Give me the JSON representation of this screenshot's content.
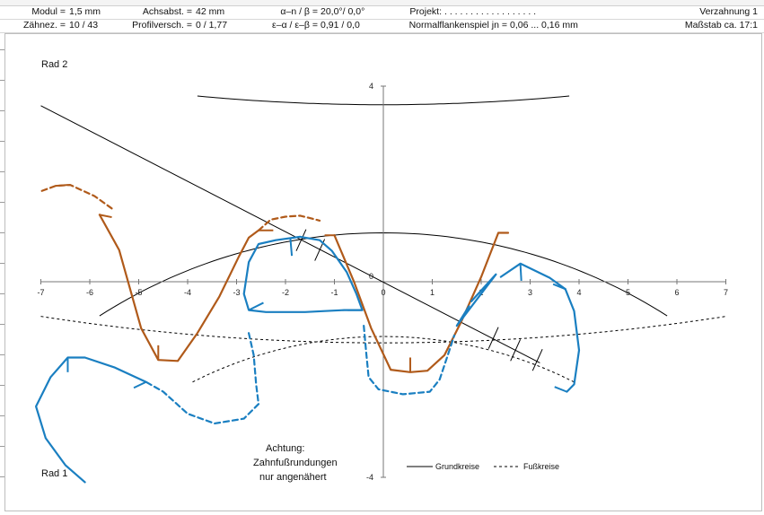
{
  "header": {
    "row1": {
      "modul_label": "Modul =",
      "modul_value": "1,5 mm",
      "achsabst_label": "Achsabst. =",
      "achsabst_value": "42 mm",
      "alpha_label": "α–n / β =",
      "alpha_value": "20,0°/ 0,0°",
      "projekt_label": "Projekt:",
      "projekt_value": ". . . . . . . . . . . . . . . . . .",
      "title": "Verzahnung 1"
    },
    "row2": {
      "zaehnez_label": "Zähnez. =",
      "zaehnez_value": "10 / 43",
      "profil_label": "Profilversch. =",
      "profil_value": "0 / 1,77",
      "eps_label": "ε–α / ε–β =",
      "eps_value": "0,91 / 0,0",
      "flank_label": "Normalflankenspiel jn =",
      "flank_value": "0,06 ... 0,16 mm",
      "scale": "Maßstab ca. 17:1"
    }
  },
  "chart_data": {
    "type": "line",
    "xlim": [
      -7,
      7
    ],
    "ylim": [
      -4,
      4
    ],
    "x_ticks": [
      "-7",
      "-6",
      "-5",
      "-4",
      "-3",
      "-2",
      "-1",
      "0",
      "1",
      "2",
      "3",
      "4",
      "5",
      "6",
      "7"
    ],
    "y_ticks": [
      "4",
      "0",
      "-4"
    ],
    "labels": {
      "rad2": "Rad 2",
      "rad1": "Rad 1"
    },
    "note": [
      "Achtung:",
      "Zahnfußrundungen",
      "nur angenähert"
    ],
    "legend": {
      "grundkreise": "Grundkreise",
      "fusskreise": "Fußkreise"
    },
    "colors": {
      "rad2": "#b05a1a",
      "rad1": "#1a7fc1",
      "circles": "#000000"
    },
    "circles": [
      {
        "name": "rad2-tip",
        "cx": 0,
        "cy": 44.25,
        "r": 40.63,
        "style": "solid",
        "x_from": -3.8,
        "x_to": 3.8
      },
      {
        "name": "rad2-root",
        "cx": 0,
        "cy": 44.25,
        "r": 45.5,
        "style": "dashed",
        "x_from": -7,
        "x_to": 7
      },
      {
        "name": "rad1-base",
        "cx": 0,
        "cy": -9.75,
        "r": 10.75,
        "style": "solid",
        "x_from": -5.8,
        "x_to": 5.8
      },
      {
        "name": "rad1-root",
        "cx": 0,
        "cy": -9.75,
        "r": 8.63,
        "style": "dashed",
        "x_from": -3.9,
        "x_to": 3.9
      }
    ],
    "action_line": {
      "x": [
        -7.0,
        3.2
      ],
      "y": [
        3.6,
        -1.66
      ]
    },
    "action_ticks": [
      {
        "x": -1.68,
        "y": 0.85,
        "dx": 0.1,
        "dy": 0.22
      },
      {
        "x": -1.3,
        "y": 0.65,
        "dx": 0.1,
        "dy": 0.22
      },
      {
        "x": 2.25,
        "y": -1.15,
        "dx": 0.1,
        "dy": 0.22
      },
      {
        "x": 2.7,
        "y": -1.4,
        "dx": 0.1,
        "dy": 0.22
      },
      {
        "x": 3.15,
        "y": -1.6,
        "dx": 0.1,
        "dy": 0.22
      }
    ],
    "series": [
      {
        "group": "rad2",
        "style": "solid",
        "points": [
          [
            -5.8,
            1.37
          ],
          [
            -5.4,
            0.65
          ],
          [
            -4.95,
            -0.95
          ],
          [
            -4.6,
            -1.6
          ],
          [
            -4.2,
            -1.62
          ],
          [
            -3.8,
            -1.05
          ],
          [
            -3.35,
            -0.3
          ],
          [
            -2.95,
            0.52
          ],
          [
            -2.75,
            0.9
          ],
          [
            -2.55,
            1.05
          ]
        ]
      },
      {
        "group": "rad2",
        "style": "dashed",
        "points": [
          [
            -2.55,
            1.05
          ],
          [
            -2.3,
            1.27
          ],
          [
            -2.0,
            1.33
          ],
          [
            -1.7,
            1.35
          ],
          [
            -1.5,
            1.3
          ],
          [
            -1.3,
            1.25
          ]
        ]
      },
      {
        "group": "rad2",
        "style": "solid",
        "points": [
          [
            -1.0,
            0.95
          ],
          [
            -0.6,
            0.0
          ],
          [
            -0.25,
            -0.95
          ],
          [
            0.15,
            -1.8
          ],
          [
            0.55,
            -1.85
          ],
          [
            0.9,
            -1.82
          ],
          [
            1.25,
            -1.5
          ],
          [
            1.6,
            -0.8
          ],
          [
            2.0,
            0.1
          ],
          [
            2.35,
            1.0
          ],
          [
            2.55,
            1.0
          ]
        ]
      },
      {
        "group": "rad2",
        "style": "dashed",
        "points": [
          [
            -5.55,
            1.5
          ],
          [
            -5.9,
            1.75
          ],
          [
            -6.4,
            1.98
          ],
          [
            -6.7,
            1.96
          ],
          [
            -7.0,
            1.85
          ]
        ]
      },
      {
        "group": "rad1",
        "style": "solid",
        "points": [
          [
            2.4,
            0.1
          ],
          [
            2.8,
            0.37
          ],
          [
            3.4,
            0.08
          ],
          [
            3.72,
            -0.15
          ]
        ]
      },
      {
        "group": "rad1",
        "style": "solid",
        "points": [
          [
            1.8,
            -0.4
          ],
          [
            2.3,
            0.15
          ],
          [
            1.5,
            -0.9
          ],
          [
            1.75,
            -0.5
          ]
        ]
      },
      {
        "group": "rad1",
        "style": "solid",
        "points": [
          [
            3.72,
            -0.15
          ],
          [
            3.9,
            -0.6
          ],
          [
            4.0,
            -1.4
          ],
          [
            3.9,
            -2.1
          ],
          [
            3.75,
            -2.25
          ]
        ]
      },
      {
        "group": "rad1",
        "style": "solid",
        "points": [
          [
            -0.43,
            -0.58
          ],
          [
            -0.8,
            -0.58
          ],
          [
            -1.2,
            -0.6
          ],
          [
            -1.6,
            -0.62
          ],
          [
            -2.4,
            -0.62
          ],
          [
            -2.75,
            -0.58
          ],
          [
            -2.85,
            -0.25
          ],
          [
            -2.75,
            0.4
          ],
          [
            -2.55,
            0.77
          ],
          [
            -2.2,
            0.85
          ],
          [
            -1.7,
            0.92
          ],
          [
            -1.3,
            0.85
          ],
          [
            -1.05,
            0.63
          ],
          [
            -0.75,
            0.2
          ],
          [
            -0.55,
            -0.25
          ],
          [
            -0.43,
            -0.58
          ]
        ]
      },
      {
        "group": "rad1",
        "style": "dashed",
        "points": [
          [
            -2.75,
            -1.05
          ],
          [
            -2.65,
            -1.5
          ],
          [
            -2.6,
            -2.1
          ],
          [
            -2.55,
            -2.5
          ],
          [
            -2.85,
            -2.8
          ],
          [
            -3.45,
            -2.9
          ],
          [
            -4.0,
            -2.7
          ],
          [
            -4.5,
            -2.25
          ],
          [
            -4.85,
            -2.05
          ]
        ]
      },
      {
        "group": "rad1",
        "style": "dashed",
        "points": [
          [
            -0.4,
            -0.9
          ],
          [
            -0.35,
            -1.45
          ],
          [
            -0.3,
            -1.95
          ],
          [
            -0.1,
            -2.2
          ],
          [
            0.4,
            -2.3
          ],
          [
            0.95,
            -2.25
          ],
          [
            1.15,
            -2.0
          ],
          [
            1.3,
            -1.55
          ],
          [
            1.45,
            -1.1
          ]
        ]
      },
      {
        "group": "rad1",
        "style": "solid",
        "points": [
          [
            -4.85,
            -2.05
          ],
          [
            -5.5,
            -1.75
          ],
          [
            -6.1,
            -1.55
          ],
          [
            -6.45,
            -1.55
          ],
          [
            -6.8,
            -1.95
          ],
          [
            -7.1,
            -2.55
          ],
          [
            -6.9,
            -3.2
          ],
          [
            -6.5,
            -3.75
          ],
          [
            -6.1,
            -4.1
          ]
        ]
      }
    ],
    "tooth_ticks": [
      {
        "group": "rad2",
        "x": -5.8,
        "y": 1.37,
        "dx": 0.25,
        "dy": -0.05
      },
      {
        "group": "rad2",
        "x": -4.6,
        "y": -1.6,
        "dx": 0.0,
        "dy": 0.3
      },
      {
        "group": "rad2",
        "x": -2.55,
        "y": 1.05,
        "dx": 0.3,
        "dy": 0.0
      },
      {
        "group": "rad2",
        "x": -1.0,
        "y": 0.95,
        "dx": -0.2,
        "dy": 0.0
      },
      {
        "group": "rad2",
        "x": 0.55,
        "y": -1.85,
        "dx": 0.0,
        "dy": 0.3
      },
      {
        "group": "rad2",
        "x": 2.55,
        "y": 1.0,
        "dx": -0.15,
        "dy": 0.0
      },
      {
        "group": "rad2",
        "x": -6.7,
        "y": 1.96,
        "dx": 0.25,
        "dy": 0.02
      },
      {
        "group": "rad1",
        "x": -1.9,
        "y": 0.88,
        "dx": 0.03,
        "dy": -0.35
      },
      {
        "group": "rad1",
        "x": -2.75,
        "y": -0.58,
        "dx": 0.3,
        "dy": 0.15
      },
      {
        "group": "rad1",
        "x": -0.43,
        "y": -0.58,
        "dx": -0.3,
        "dy": 0.0
      },
      {
        "group": "rad1",
        "x": 2.8,
        "y": 0.37,
        "dx": 0.02,
        "dy": -0.35
      },
      {
        "group": "rad1",
        "x": 3.72,
        "y": -0.15,
        "dx": -0.25,
        "dy": 0.1
      },
      {
        "group": "rad1",
        "x": 3.75,
        "y": -2.25,
        "dx": -0.25,
        "dy": 0.1
      },
      {
        "group": "rad1",
        "x": -6.45,
        "y": -1.55,
        "dx": 0.0,
        "dy": -0.3
      },
      {
        "group": "rad1",
        "x": -4.85,
        "y": -2.05,
        "dx": -0.25,
        "dy": -0.12
      }
    ]
  }
}
